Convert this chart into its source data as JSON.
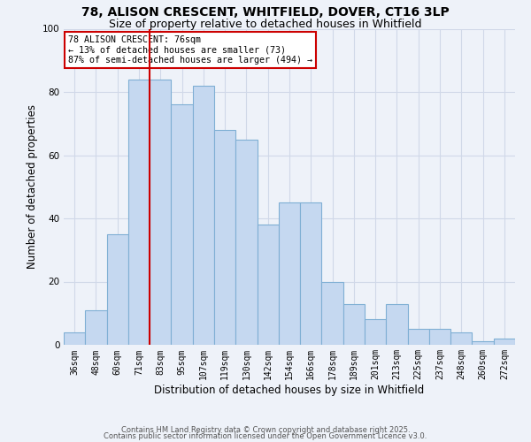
{
  "title": "78, ALISON CRESCENT, WHITFIELD, DOVER, CT16 3LP",
  "subtitle": "Size of property relative to detached houses in Whitfield",
  "xlabel": "Distribution of detached houses by size in Whitfield",
  "ylabel": "Number of detached properties",
  "bin_labels": [
    "36sqm",
    "48sqm",
    "60sqm",
    "71sqm",
    "83sqm",
    "95sqm",
    "107sqm",
    "119sqm",
    "130sqm",
    "142sqm",
    "154sqm",
    "166sqm",
    "178sqm",
    "189sqm",
    "201sqm",
    "213sqm",
    "225sqm",
    "237sqm",
    "248sqm",
    "260sqm",
    "272sqm"
  ],
  "bar_heights": [
    4,
    11,
    35,
    84,
    84,
    76,
    82,
    68,
    65,
    38,
    45,
    45,
    20,
    13,
    8,
    13,
    5,
    5,
    4,
    1,
    2
  ],
  "bar_color": "#c5d8f0",
  "bar_edge_color": "#7fafd4",
  "vline_x_idx": 3,
  "vline_color": "#cc0000",
  "annotation_text": "78 ALISON CRESCENT: 76sqm\n← 13% of detached houses are smaller (73)\n87% of semi-detached houses are larger (494) →",
  "annotation_box_color": "#ffffff",
  "annotation_box_edge": "#cc0000",
  "ylim": [
    0,
    100
  ],
  "yticks": [
    0,
    20,
    40,
    60,
    80,
    100
  ],
  "footer1": "Contains HM Land Registry data © Crown copyright and database right 2025.",
  "footer2": "Contains public sector information licensed under the Open Government Licence v3.0.",
  "bg_color": "#eef2f9",
  "grid_color": "#d0d8e8",
  "title_fontsize": 10,
  "subtitle_fontsize": 9,
  "axis_label_fontsize": 8.5,
  "tick_fontsize": 7,
  "footer_fontsize": 6
}
